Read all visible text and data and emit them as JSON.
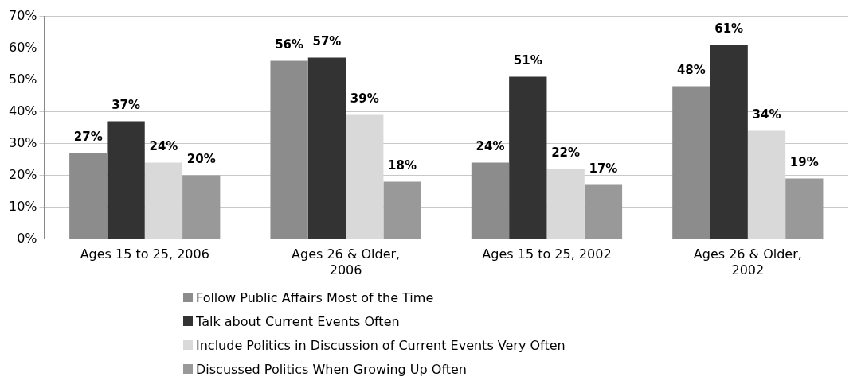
{
  "chart_data": {
    "type": "bar",
    "categories": [
      "Ages 15 to 25, 2006",
      "Ages 26 & Older, 2006",
      "Ages 15 to 25, 2002",
      "Ages 26 & Older, 2002"
    ],
    "series": [
      {
        "name": "Follow Public Affairs Most of the Time",
        "color": "#8c8c8c",
        "values": [
          27,
          56,
          24,
          48
        ],
        "value_labels": [
          "27%",
          "56%",
          "24%",
          "48%"
        ]
      },
      {
        "name": "Talk about Current Events Often",
        "color": "#333333",
        "values": [
          37,
          57,
          51,
          61
        ],
        "value_labels": [
          "37%",
          "57%",
          "51%",
          "61%"
        ]
      },
      {
        "name": "Include Politics in Discussion of Current Events Very Often",
        "color": "#d9d9d9",
        "values": [
          24,
          39,
          22,
          34
        ],
        "value_labels": [
          "24%",
          "39%",
          "22%",
          "34%"
        ]
      },
      {
        "name": "Discussed Politics When Growing Up Often",
        "color": "#999999",
        "values": [
          20,
          18,
          17,
          19
        ],
        "value_labels": [
          "20%",
          "18%",
          "17%",
          "19%"
        ]
      }
    ],
    "ylim": [
      0,
      70
    ],
    "yticks": [
      {
        "value": 0,
        "label": "0%"
      },
      {
        "value": 10,
        "label": "10%"
      },
      {
        "value": 20,
        "label": "20%"
      },
      {
        "value": 30,
        "label": "30%"
      },
      {
        "value": 40,
        "label": "40%"
      },
      {
        "value": 50,
        "label": "50%"
      },
      {
        "value": 60,
        "label": "60%"
      },
      {
        "value": 70,
        "label": "70%"
      }
    ],
    "grid": "y",
    "legend": "bottom"
  }
}
